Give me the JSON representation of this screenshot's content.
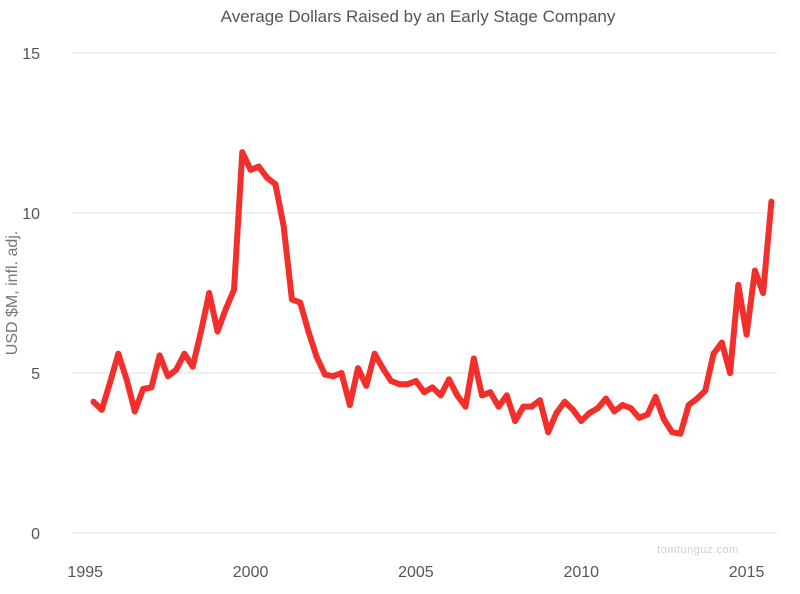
{
  "chart_data": {
    "type": "line",
    "title": "Average Dollars Raised by an Early Stage Company",
    "xlabel": "",
    "ylabel": "USD $M, infl. adj.",
    "xlim": [
      1994.6,
      2015.95
    ],
    "ylim": [
      0,
      15
    ],
    "x_ticks": [
      1995,
      2000,
      2005,
      2010,
      2015
    ],
    "y_ticks": [
      0,
      5,
      10,
      15
    ],
    "grid": true,
    "legend": "none",
    "watermark": "tomtunguz.com",
    "series": [
      {
        "color": "#f22f2a",
        "x": [
          1995.25,
          1995.5,
          1995.75,
          1996.0,
          1996.25,
          1996.5,
          1996.75,
          1997.0,
          1997.25,
          1997.5,
          1997.75,
          1998.0,
          1998.25,
          1998.5,
          1998.75,
          1999.0,
          1999.25,
          1999.5,
          1999.75,
          2000.0,
          2000.25,
          2000.5,
          2000.75,
          2001.0,
          2001.25,
          2001.5,
          2001.75,
          2002.0,
          2002.25,
          2002.5,
          2002.75,
          2003.0,
          2003.25,
          2003.5,
          2003.75,
          2004.0,
          2004.25,
          2004.5,
          2004.75,
          2005.0,
          2005.25,
          2005.5,
          2005.75,
          2006.0,
          2006.25,
          2006.5,
          2006.75,
          2007.0,
          2007.25,
          2007.5,
          2007.75,
          2008.0,
          2008.25,
          2008.5,
          2008.75,
          2009.0,
          2009.25,
          2009.5,
          2009.75,
          2010.0,
          2010.25,
          2010.5,
          2010.75,
          2011.0,
          2011.25,
          2011.5,
          2011.75,
          2012.0,
          2012.25,
          2012.5,
          2012.75,
          2013.0,
          2013.25,
          2013.5,
          2013.75,
          2014.0,
          2014.25,
          2014.5,
          2014.75,
          2015.0,
          2015.25,
          2015.5,
          2015.75
        ],
        "y": [
          4.1,
          3.85,
          4.7,
          5.6,
          4.8,
          3.8,
          4.5,
          4.55,
          5.55,
          4.9,
          5.1,
          5.6,
          5.2,
          6.3,
          7.5,
          6.3,
          7.0,
          7.6,
          11.9,
          11.35,
          11.45,
          11.1,
          10.9,
          9.6,
          7.3,
          7.2,
          6.3,
          5.5,
          4.95,
          4.9,
          5.0,
          4.0,
          5.15,
          4.6,
          5.6,
          5.15,
          4.75,
          4.65,
          4.65,
          4.75,
          4.4,
          4.55,
          4.3,
          4.8,
          4.3,
          3.95,
          5.45,
          4.3,
          4.4,
          3.95,
          4.3,
          3.5,
          3.95,
          3.95,
          4.15,
          3.15,
          3.75,
          4.1,
          3.85,
          3.5,
          3.75,
          3.9,
          4.2,
          3.8,
          4.0,
          3.9,
          3.6,
          3.7,
          4.25,
          3.55,
          3.15,
          3.1,
          4.0,
          4.2,
          4.45,
          5.6,
          5.95,
          5.0,
          7.75,
          6.2,
          8.2,
          7.5,
          10.35
        ]
      }
    ]
  }
}
